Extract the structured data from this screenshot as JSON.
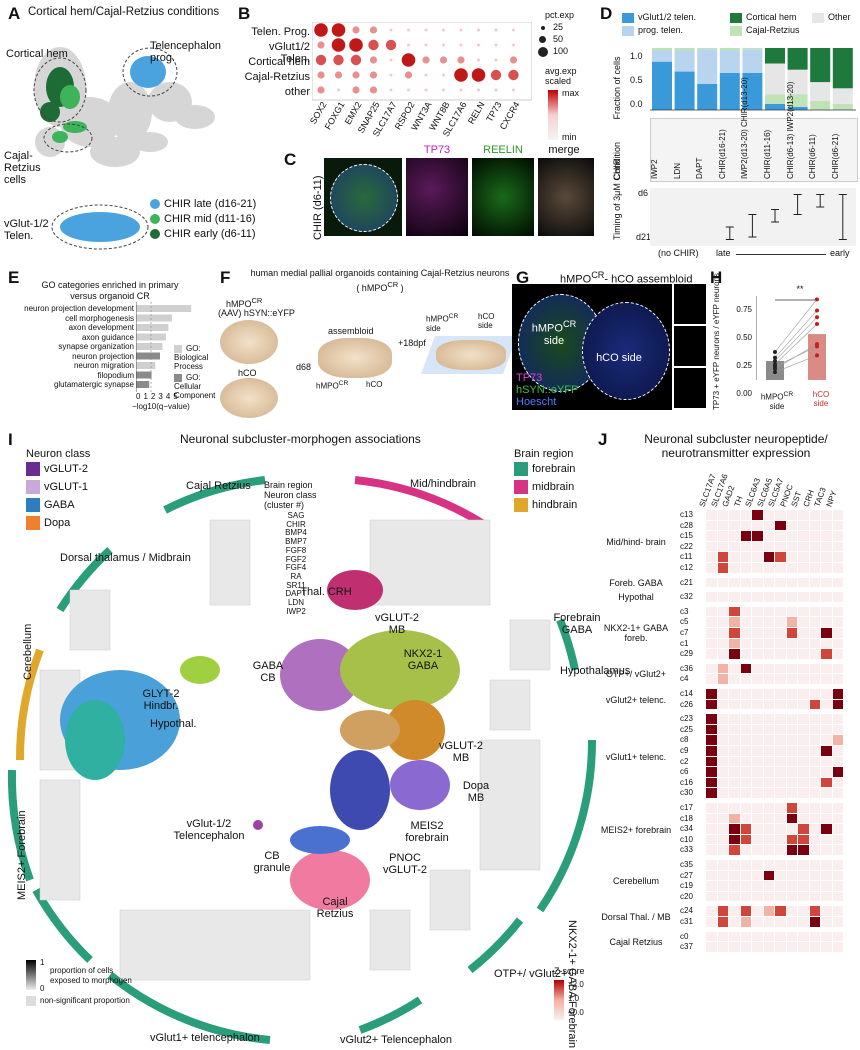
{
  "panels": {
    "A": {
      "label": "A",
      "title": "Cortical hem/Cajal-Retzius conditions",
      "annotations": [
        "Cortical hem",
        "Telencephalon prog.",
        "Cajal-Retzius cells",
        "vGlut-1/2 Telen."
      ],
      "legend": [
        {
          "label": "CHIR late (d16-21)",
          "color": "#4aa3df"
        },
        {
          "label": "CHIR mid (d11-16)",
          "color": "#3db35a"
        },
        {
          "label": "CHIR early (d6-11)",
          "color": "#1e6b35"
        }
      ]
    },
    "B": {
      "label": "B",
      "rows": [
        "Telen. Prog.",
        "vGlut1/2 Telen.",
        "Cortical hem",
        "Cajal-Retzius",
        "other"
      ],
      "genes": [
        "SOX2",
        "FOXG1",
        "EMX2",
        "SNAP25",
        "SLC17A7",
        "RSPO2",
        "WNT3A",
        "WNT8B",
        "SLC17A6",
        "RELN",
        "TP73",
        "CXCR4"
      ],
      "size_legend_title": "pct.exp",
      "size_legend": [
        "25",
        "50",
        "100"
      ],
      "color_legend_title": "avg.exp scaled",
      "color_max": "max",
      "color_min": "min"
    },
    "C": {
      "label": "C",
      "ylabel": "CHIR (d6-11)",
      "cols": [
        "TP73",
        "REELIN",
        "merge"
      ]
    },
    "D": {
      "label": "D",
      "legend": [
        {
          "label": "vGlut1/2 telen.",
          "color": "#3a9ad9"
        },
        {
          "label": "Cortical hem",
          "color": "#1e7a3c"
        },
        {
          "label": "Other",
          "color": "#e6e6e6"
        },
        {
          "label": "prog. telen.",
          "color": "#b8d4ee"
        },
        {
          "label": "Cajal-Retzius",
          "color": "#bfe3b6"
        }
      ],
      "ylabel": "Fraction of cells",
      "yticks": [
        "1.0",
        "0.5",
        "0.0"
      ],
      "conditions": [
        "IWP2",
        "LDN",
        "DAPT",
        "CHIR(d16-21)",
        "IWP2(d13-20) CHIR(d13-20)",
        "CHIR(d11-16)",
        "CHIR(d6-13) IWP2(d13-20)",
        "CHIR(d6-11)",
        "CHIR(d6-21)"
      ],
      "condition_label": "Condition",
      "timing_label": "Timing of 3μM CHIR",
      "timing_top": "d6",
      "timing_bottom": "d21",
      "no_chir": "(no CHIR)",
      "late": "late",
      "early": "early"
    },
    "E": {
      "label": "E",
      "title": "GO categories enriched in primary versus organoid CR",
      "terms": [
        "neuron projection development",
        "cell morphogenesis",
        "axon development",
        "axon guidance",
        "synapse organization",
        "neuron projection",
        "neuron migration",
        "filopodium",
        "glutamatergic synapse"
      ],
      "xlabel": "−log10(q−value)",
      "xticks": [
        "0",
        "1",
        "2",
        "3",
        "4",
        "5"
      ],
      "legend": [
        {
          "label": "GO: Biological Process",
          "color": "#d0d0d0"
        },
        {
          "label": "GO: Cellular Component",
          "color": "#8a8a8a"
        }
      ]
    },
    "F": {
      "label": "F",
      "title": "human medial pallial organoids containing Cajal-Retzius neurons ( hMPO",
      "title_sup": "CR",
      "title_end": " )",
      "hmpo": "hMPO",
      "sup": "CR",
      "aav": "(AAV) hSYN::eYFP",
      "hco": "hCO",
      "d68": "d68",
      "assembloid": "assembloid",
      "plus18": "+18dpf",
      "hmpo_side": "side",
      "hco_side": "hCO side"
    },
    "G": {
      "label": "G",
      "title": "hMPO",
      "sup": "CR",
      "title_end": "- hCO assembloid",
      "left": "hMPO",
      "left2": "side",
      "right": "hCO side",
      "channels": [
        {
          "label": "TP73",
          "color": "#e040e0"
        },
        {
          "label": "hSYN::eYFP",
          "color": "#3ec43e"
        },
        {
          "label": "Hoescht",
          "color": "#4f7bff"
        }
      ]
    },
    "H": {
      "label": "H",
      "ylabel": "TP73 + eYFP neurons / eYFP neurons",
      "yticks": [
        "0.75",
        "0.50",
        "0.25",
        "0.00"
      ],
      "sig": "**",
      "chart_data": {
        "type": "bar",
        "categories": [
          "hMPO CR side",
          "hCO side"
        ],
        "values": [
          0.17,
          0.41
        ],
        "paired": [
          [
            0.07,
            0.22
          ],
          [
            0.1,
            0.32
          ],
          [
            0.12,
            0.3
          ],
          [
            0.14,
            0.5
          ],
          [
            0.17,
            0.56
          ],
          [
            0.2,
            0.62
          ],
          [
            0.25,
            0.72
          ]
        ],
        "ylim": [
          0,
          0.75
        ]
      },
      "xlabels": [
        "hMPO",
        "CR",
        "side",
        "hCO",
        "side"
      ]
    },
    "I": {
      "label": "I",
      "title": "Neuronal subcluster-morphogen associations",
      "neuron_class_title": "Neuron class",
      "neuron_class": [
        {
          "label": "vGLUT-2",
          "color": "#6b2c91"
        },
        {
          "label": "vGLUT-1",
          "color": "#c9a9d9"
        },
        {
          "label": "GABA",
          "color": "#2e7dbf"
        },
        {
          "label": "Dopa",
          "color": "#f08030"
        }
      ],
      "brain_region_title": "Brain region",
      "brain_region": [
        {
          "label": "forebrain",
          "color": "#2a9d7a"
        },
        {
          "label": "midbrain",
          "color": "#d63384"
        },
        {
          "label": "hindbrain",
          "color": "#e0a82a"
        }
      ],
      "header_rows": [
        "Brain region",
        "Neuron class",
        "(cluster #)"
      ],
      "morphogens": [
        "SAG",
        "CHIR",
        "BMP4",
        "BMP7",
        "FGF8",
        "FGF2",
        "FGF4",
        "RA",
        "SR11",
        "DAPT",
        "LDN",
        "IWP2"
      ],
      "groups": [
        "Cajal Retzius",
        "Mid/hindbrain",
        "Dorsal thalamus / Midbrain",
        "Forebrain GABA",
        "Cerebellum",
        "Hypothalamus",
        "MEIS2+ Forebrain",
        "NKX2-1+ GABA Forebrain",
        "vGlut1+ telencephalon",
        "vGlut2+ Telencephalon",
        "OTP+/ vGlut2+"
      ],
      "umap_labels": [
        "Thal. CRH",
        "vGLUT-2 MB",
        "GABA CB",
        "NKX2-1 GABA",
        "GLYT-2 Hindbr.",
        "Hypothal.",
        "vGLUT-2 MB",
        "Dopa MB",
        "vGlut-1/2 Telencephalon",
        "CB granule",
        "MEIS2 forebrain",
        "PNOC vGLUT-2",
        "Cajal Retzius"
      ],
      "legend_prop": "proportion of cells exposed to morphogen",
      "legend_ns": "non-significant proportion",
      "legend_1": "1",
      "legend_0": "0"
    },
    "J": {
      "label": "J",
      "title": "Neuronal subcluster neuropeptide/ neurotransmitter expression",
      "genes": [
        "SLC17A7",
        "SLC17A6",
        "GAD2",
        "TH",
        "SLC6A3",
        "SLC6A5",
        "SLC5A7",
        "PNOC",
        "SST",
        "CRH",
        "TAC3",
        "NPY"
      ],
      "zscore_title": "Z-score",
      "zscore_ticks": [
        ">2.0",
        "1.0",
        "<0.0"
      ],
      "row_groups": [
        {
          "label": "Mid/hind- brain",
          "clusters": [
            "c13",
            "c28",
            "c15",
            "c22",
            "c11",
            "c12"
          ]
        },
        {
          "label": "Foreb. GABA",
          "clusters": [
            "c21"
          ]
        },
        {
          "label": "Hypothal",
          "clusters": [
            "c32"
          ]
        },
        {
          "label": "NKX2-1+ GABA foreb.",
          "clusters": [
            "c3",
            "c5",
            "c7",
            "c1",
            "c29"
          ]
        },
        {
          "label": "OTP+/ vGlut2+",
          "clusters": [
            "c36",
            "c4"
          ]
        },
        {
          "label": "vGlut2+ telenc.",
          "clusters": [
            "c14",
            "c26"
          ]
        },
        {
          "label": "vGlut1+ telenc.",
          "clusters": [
            "c23",
            "c25",
            "c8",
            "c9",
            "c2",
            "c6",
            "c16",
            "c30"
          ]
        },
        {
          "label": "MEIS2+ forebrain",
          "clusters": [
            "c17",
            "c18",
            "c34",
            "c10",
            "c33"
          ]
        },
        {
          "label": "Cerebellum",
          "clusters": [
            "c35",
            "c27",
            "c19",
            "c20"
          ]
        },
        {
          "label": "Dorsal Thal. / MB",
          "clusters": [
            "c24",
            "c31"
          ]
        },
        {
          "label": "Cajal Retzius",
          "clusters": [
            "c0",
            "c37"
          ]
        }
      ]
    }
  }
}
